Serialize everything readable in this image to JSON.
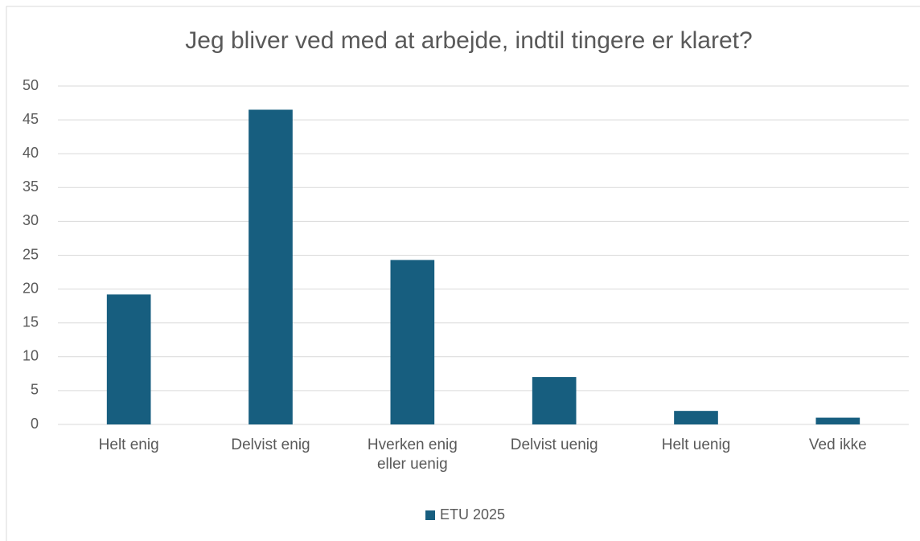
{
  "chart_data": {
    "type": "bar",
    "title": "Jeg bliver ved med at arbejde, indtil tingere er klaret?",
    "categories": [
      "Helt enig",
      "Delvist enig",
      "Hverken enig eller uenig",
      "Delvist uenig",
      "Helt uenig",
      "Ved ikke"
    ],
    "series": [
      {
        "name": "ETU 2025",
        "color": "#175e7f",
        "values": [
          19.2,
          46.5,
          24.3,
          7.0,
          2.0,
          1.0
        ]
      }
    ],
    "ylim": [
      0,
      50
    ],
    "yticks": [
      0,
      5,
      10,
      15,
      20,
      25,
      30,
      35,
      40,
      45,
      50
    ],
    "grid": true,
    "legend": "bottom"
  }
}
